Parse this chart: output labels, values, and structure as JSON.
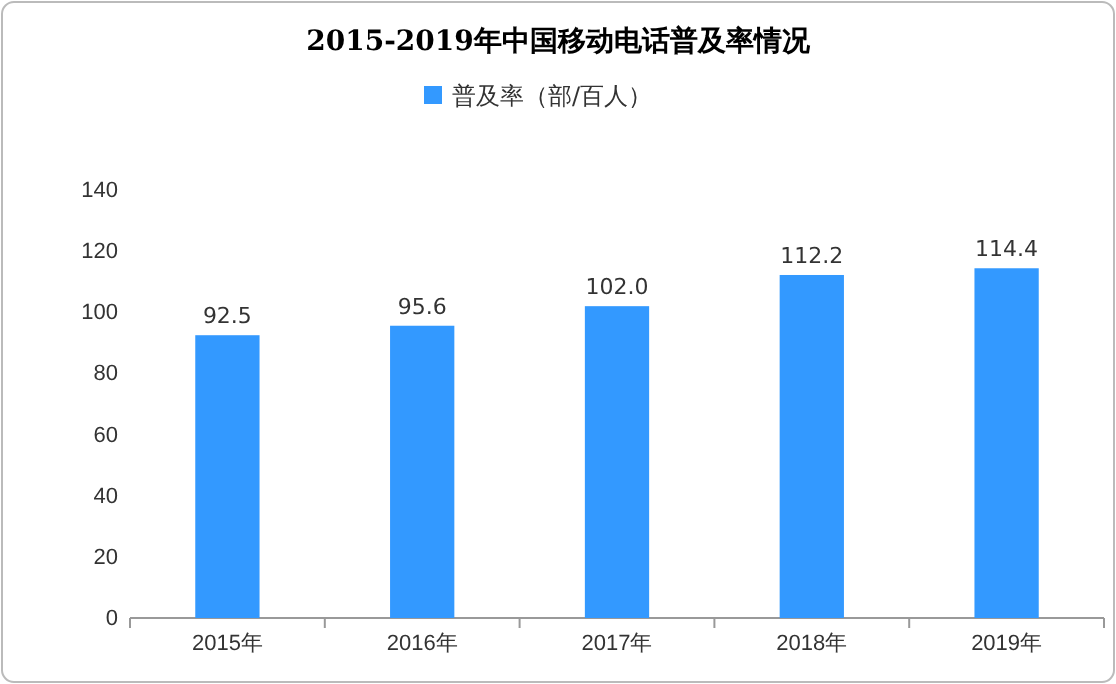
{
  "chart_data": {
    "type": "bar",
    "title": "2015-2019年中国移动电话普及率情况",
    "categories": [
      "2015年",
      "2016年",
      "2017年",
      "2018年",
      "2019年"
    ],
    "series": [
      {
        "name": "普及率（部/百人）",
        "color": "#3399ff",
        "values": [
          92.5,
          95.6,
          102.0,
          112.2,
          114.4
        ]
      }
    ],
    "value_labels": [
      "92.5",
      "95.6",
      "102.0",
      "112.2",
      "114.4"
    ],
    "ylim": [
      0,
      140
    ],
    "yticks": [
      0,
      20,
      40,
      60,
      80,
      100,
      120,
      140
    ],
    "grid": false,
    "legend": "top"
  }
}
